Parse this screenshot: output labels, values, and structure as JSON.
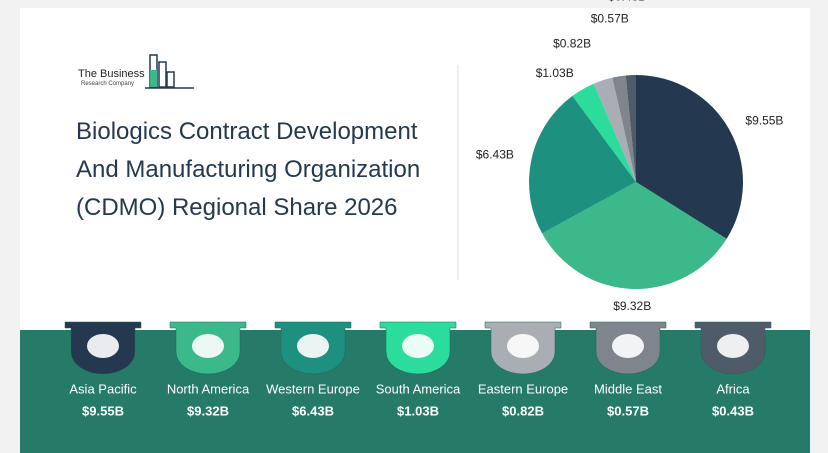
{
  "logo": {
    "name": "The Business",
    "subname": "Research Company"
  },
  "chart_data": {
    "type": "pie",
    "title": "Biologics Contract Development And Manufacturing Organization (CDMO) Regional Share 2026",
    "categories": [
      "Asia Pacific",
      "North America",
      "Western Europe",
      "South America",
      "Eastern Europe",
      "Middle East",
      "Africa"
    ],
    "values": [
      9.55,
      9.32,
      6.43,
      1.03,
      0.82,
      0.57,
      0.43
    ],
    "value_labels": [
      "$9.55B",
      "$9.32B",
      "$6.43B",
      "$1.03B",
      "$0.82B",
      "$0.57B",
      "$0.43B"
    ],
    "colors": [
      "#243950",
      "#3bb98a",
      "#1e9080",
      "#2bdc9c",
      "#a9adb4",
      "#7e858d",
      "#505b69"
    ]
  }
}
